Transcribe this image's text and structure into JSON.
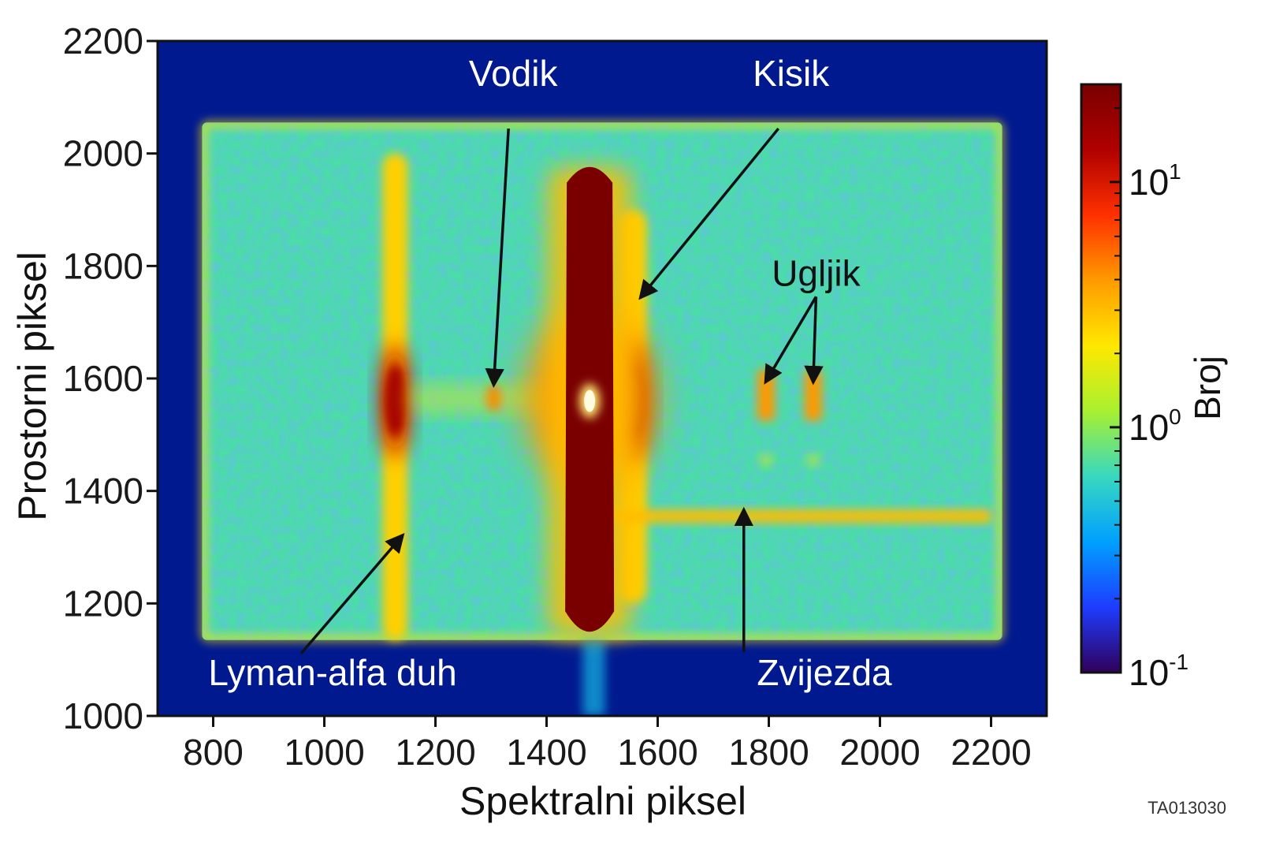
{
  "chart_data": {
    "type": "heatmap",
    "title": "",
    "xlabel": "Spektralni piksel",
    "ylabel": "Prostorni piksel",
    "xlim": [
      700,
      2300
    ],
    "ylim": [
      1000,
      2200
    ],
    "xticks": [
      800,
      1000,
      1200,
      1400,
      1600,
      1800,
      2000,
      2200
    ],
    "yticks": [
      1000,
      1200,
      1400,
      1600,
      1800,
      2000,
      2200
    ],
    "grid": false,
    "colorbar": {
      "label": "Broj",
      "scale": "log",
      "range": [
        0.1,
        25
      ],
      "ticks": [
        {
          "value": 0.1,
          "base": "10",
          "exp": "-1"
        },
        {
          "value": 1,
          "base": "10",
          "exp": "0"
        },
        {
          "value": 10,
          "base": "10",
          "exp": "1"
        }
      ],
      "colors": [
        "#30005a",
        "#1e3cff",
        "#00a0ff",
        "#38d8c0",
        "#a8f030",
        "#ffe800",
        "#ff9a00",
        "#ff3000",
        "#b00000",
        "#7a0000"
      ]
    },
    "background_color": "#00198f",
    "detector_area": {
      "x": [
        780,
        2220
      ],
      "y": [
        1135,
        2055
      ],
      "level": 0.7
    },
    "features": [
      {
        "label": "Lyman-alfa duh",
        "x": [
          1105,
          1150
        ],
        "y": [
          1135,
          2000
        ],
        "peak_y": 1560,
        "peak_level": 12
      },
      {
        "label": "Vodik",
        "x": [
          1305
        ],
        "y": [
          1565
        ],
        "level": 6
      },
      {
        "label": "Kisik",
        "x": [
          1530,
          1580
        ],
        "y": [
          1200,
          1900
        ],
        "peak_y": 1560,
        "peak_level": 18
      },
      {
        "label": "Ugljik",
        "x": [
          1795,
          1880
        ],
        "y": [
          1525,
          1615
        ],
        "level": 4
      },
      {
        "label": "Zvijezda",
        "x": [
          1520,
          2200
        ],
        "y": [
          1355
        ],
        "level": 3
      },
      {
        "label": "",
        "x": [
          1425,
          1530
        ],
        "y": [
          1130,
          1990
        ],
        "level": 25
      }
    ],
    "annotations": [
      {
        "text": "Vodik",
        "text_pos": [
          1340,
          2120
        ],
        "arrow_to": [
          1305,
          1590
        ]
      },
      {
        "text": "Kisik",
        "text_pos": [
          1840,
          2120
        ],
        "arrow_to": [
          1570,
          1745
        ]
      },
      {
        "text": "Ugljik",
        "text_pos": [
          1885,
          1765
        ],
        "arrow_to": [
          [
            1795,
            1595
          ],
          [
            1880,
            1595
          ]
        ]
      },
      {
        "text": "Lyman-alfa duh",
        "text_pos": [
          1015,
          1055
        ],
        "arrow_to": [
          1140,
          1320
        ]
      },
      {
        "text": "Zvijezda",
        "text_pos": [
          1900,
          1055
        ],
        "arrow_to": [
          1755,
          1365
        ]
      }
    ],
    "figure_id": "TA013030"
  }
}
